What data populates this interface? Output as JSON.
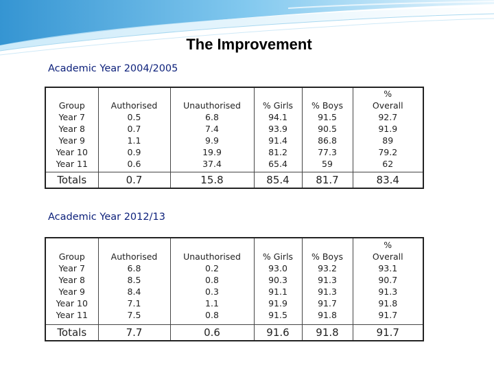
{
  "page": {
    "title": "The Improvement"
  },
  "columns": [
    "Group",
    "Authorised",
    "Unauthorised",
    "% Girls",
    "% Boys",
    "%",
    "Overall"
  ],
  "tables": [
    {
      "heading": "Academic Year 2004/2005",
      "groups": [
        "Year 7",
        "Year 8",
        "Year 9",
        "Year 10",
        "Year 11"
      ],
      "authorised": [
        "0.5",
        "0.7",
        "1.1",
        "0.9",
        "0.6"
      ],
      "unauthorised": [
        "6.8",
        "7.4",
        "9.9",
        "19.9",
        "37.4"
      ],
      "girls": [
        "94.1",
        "93.9",
        "91.4",
        "81.2",
        "65.4"
      ],
      "boys": [
        "91.5",
        "90.5",
        "86.8",
        "77.3",
        "59"
      ],
      "overall": [
        "92.7",
        "91.9",
        "89",
        "79.2",
        "62"
      ],
      "totals": {
        "label": "Totals",
        "authorised": "0.7",
        "unauthorised": "15.8",
        "girls": "85.4",
        "boys": "81.7",
        "overall": "83.4"
      }
    },
    {
      "heading": "Academic Year 2012/13",
      "groups": [
        "Year 7",
        "Year 8",
        "Year 9",
        "Year 10",
        "Year 11"
      ],
      "authorised": [
        "6.8",
        "8.5",
        "8.4",
        "7.1",
        "7.5"
      ],
      "unauthorised": [
        "0.2",
        "0.8",
        "0.3",
        "1.1",
        "0.8"
      ],
      "girls": [
        "93.0",
        "90.3",
        "91.1",
        "91.9",
        "91.5"
      ],
      "boys": [
        "93.2",
        "91.3",
        "91.3",
        "91.7",
        "91.8"
      ],
      "overall": [
        "93.1",
        "90.7",
        "91.3",
        "91.8",
        "91.7"
      ],
      "totals": {
        "label": "Totals",
        "authorised": "7.7",
        "unauthorised": "0.6",
        "girls": "91.6",
        "boys": "91.8",
        "overall": "91.7"
      }
    }
  ]
}
